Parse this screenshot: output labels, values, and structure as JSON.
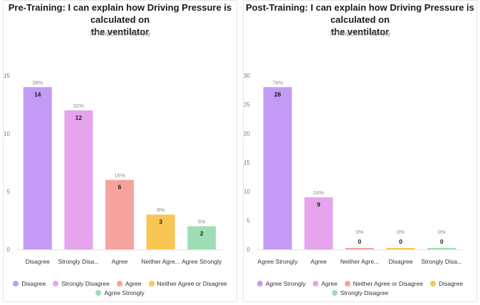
{
  "chart_data": [
    {
      "type": "bar",
      "title": "Pre-Training: I can explain how Driving Pressure is calculated on the ventilator",
      "title_lines": [
        "Pre-Training: I can explain how Driving Pressure is calculated on",
        "the ventilator"
      ],
      "subtitle": "37 Responses- 2 Empty",
      "categories": [
        "Disagree",
        "Strongly Disa...",
        "Agree",
        "Neither Agre...",
        "Agree Strongly"
      ],
      "values": [
        14,
        12,
        6,
        3,
        2
      ],
      "percent_labels": [
        "38%",
        "32%",
        "16%",
        "8%",
        "5%"
      ],
      "colors": [
        "#c39bf7",
        "#e6a4ec",
        "#f7a39d",
        "#f9c656",
        "#9fddb6"
      ],
      "ylim": [
        0,
        15
      ],
      "yticks": [
        0,
        5,
        10,
        15
      ],
      "grid": false,
      "xlabel": "",
      "ylabel": "",
      "legend": [
        {
          "label": "Disagree",
          "color": "#c39bf7"
        },
        {
          "label": "Strongly Disagree",
          "color": "#e6a4ec"
        },
        {
          "label": "Agree",
          "color": "#f7a39d"
        },
        {
          "label": "Neither Agree or Disagree",
          "color": "#f9c656"
        },
        {
          "label": "Agree Strongly",
          "color": "#9fddb6"
        }
      ]
    },
    {
      "type": "bar",
      "title": "Post-Training: I can explain how Driving Pressure is calculated on the ventilator",
      "title_lines": [
        "Post-Training: I can explain how Driving Pressure is calculated on",
        "the ventilator"
      ],
      "subtitle": "37 Responses- 2 Empty",
      "categories": [
        "Agree Strongly",
        "Agree",
        "Neither Agre...",
        "Disagree",
        "Strongly Disa..."
      ],
      "values": [
        28,
        9,
        0,
        0,
        0
      ],
      "percent_labels": [
        "76%",
        "24%",
        "0%",
        "0%",
        "0%"
      ],
      "colors": [
        "#c39bf7",
        "#e6a4ec",
        "#f7a39d",
        "#f9c656",
        "#9fddb6"
      ],
      "ylim": [
        0,
        30
      ],
      "yticks": [
        0,
        5,
        10,
        15,
        20,
        25,
        30
      ],
      "grid": false,
      "xlabel": "",
      "ylabel": "",
      "legend": [
        {
          "label": "Agree Strongly",
          "color": "#c39bf7"
        },
        {
          "label": "Agree",
          "color": "#e6a4ec"
        },
        {
          "label": "Neither Agree or Disagree",
          "color": "#f7a39d"
        },
        {
          "label": "Disagree",
          "color": "#f9c656"
        },
        {
          "label": "Strongly Disagree",
          "color": "#9fddb6"
        }
      ]
    }
  ]
}
